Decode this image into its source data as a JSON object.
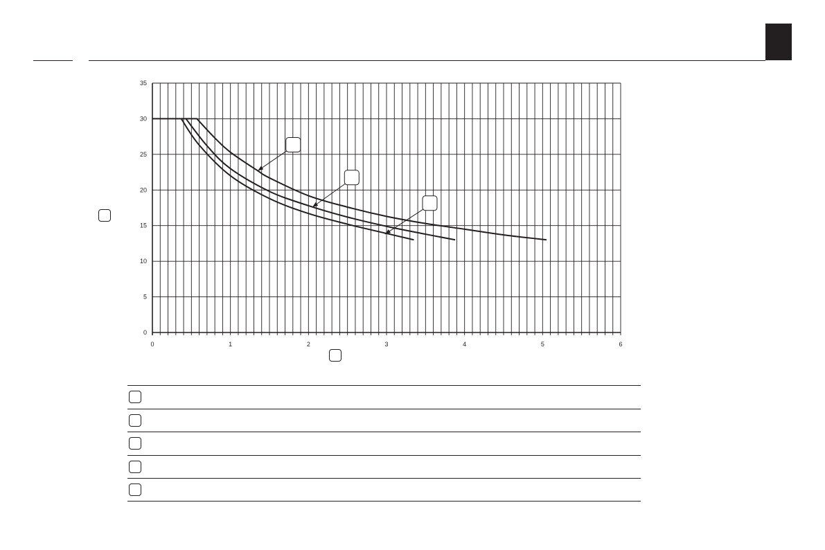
{
  "colors": {
    "ink": "#231f20",
    "background": "#ffffff"
  },
  "chart_data": {
    "type": "line",
    "title": "",
    "xlabel": "",
    "ylabel": "",
    "xlim": [
      0,
      6
    ],
    "ylim": [
      0,
      35
    ],
    "x_ticks": [
      0,
      1,
      2,
      3,
      4,
      5,
      6
    ],
    "y_ticks": [
      0,
      5,
      10,
      15,
      20,
      25,
      30,
      35
    ],
    "grid": {
      "vertical_step": 0.1,
      "horizontal_step": 5
    },
    "series": [
      {
        "points": [
          [
            0,
            30
          ],
          [
            0.57,
            30
          ],
          [
            0.8,
            27.3
          ],
          [
            1,
            25.3
          ],
          [
            1.35,
            22.7
          ],
          [
            1.5,
            21.7
          ],
          [
            2,
            19.2
          ],
          [
            2.5,
            17.6
          ],
          [
            3,
            16.3
          ],
          [
            3.5,
            15.3
          ],
          [
            4,
            14.5
          ],
          [
            4.5,
            13.7
          ],
          [
            5.05,
            13.0
          ]
        ]
      },
      {
        "points": [
          [
            0.43,
            30
          ],
          [
            0.7,
            26.2
          ],
          [
            1,
            23.0
          ],
          [
            1.5,
            19.8
          ],
          [
            2,
            17.8
          ],
          [
            2.5,
            16.2
          ],
          [
            3,
            14.9
          ],
          [
            3.5,
            13.8
          ],
          [
            3.88,
            13.0
          ]
        ]
      },
      {
        "points": [
          [
            0.37,
            30
          ],
          [
            0.6,
            26.3
          ],
          [
            1,
            22.0
          ],
          [
            1.5,
            18.8
          ],
          [
            2,
            16.7
          ],
          [
            2.5,
            15.2
          ],
          [
            3,
            13.9
          ],
          [
            3.35,
            13.0
          ]
        ]
      }
    ],
    "callouts": [
      {
        "series": 0,
        "target": [
          1.35,
          22.7
        ],
        "box": [
          1.8,
          26.4
        ]
      },
      {
        "series": 1,
        "target": [
          2.05,
          17.6
        ],
        "box": [
          2.55,
          21.8
        ]
      },
      {
        "series": 2,
        "target": [
          2.98,
          13.8
        ],
        "box": [
          3.55,
          18.2
        ]
      }
    ]
  },
  "legend_rows": 5
}
